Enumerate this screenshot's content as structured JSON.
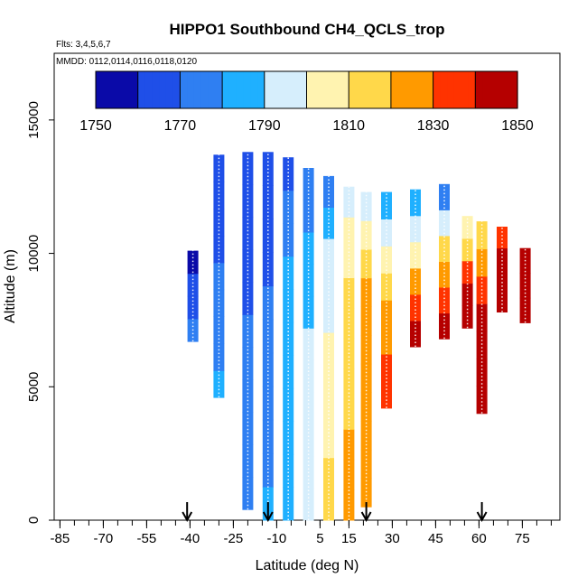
{
  "chart_data": {
    "type": "heatmap",
    "title": "HIPPO1 Southbound CH4_QCLS_trop",
    "flights_label": "Flts: 3,4,5,6,7",
    "mmdd_label": "MMDD: 0112,0114,0116,0118,0120",
    "xlabel": "Latitude (deg N)",
    "ylabel": "Altitude (m)",
    "xlim": [
      -87,
      88
    ],
    "ylim": [
      0,
      17500
    ],
    "x_ticks": [
      -85,
      -70,
      -55,
      -40,
      -25,
      -10,
      5,
      15,
      30,
      45,
      60,
      75
    ],
    "x_minor_step": 5,
    "y_ticks": [
      0,
      5000,
      10000,
      15000
    ],
    "colorbar": {
      "vmin": 1750,
      "vmax": 1850,
      "boundaries": [
        1750,
        1760,
        1770,
        1780,
        1790,
        1800,
        1810,
        1820,
        1830,
        1840,
        1850
      ],
      "labels": [
        "1750",
        "1770",
        "1790",
        "1810",
        "1830",
        "1850"
      ],
      "colors": [
        "#6a0dad",
        "#0a0aa8",
        "#1f4fe8",
        "#2f7ff2",
        "#1fb0ff",
        "#d6eefc",
        "#fff3b0",
        "#ffd84a",
        "#ff9a00",
        "#ff3300",
        "#b50000"
      ]
    },
    "arrows_latitude": [
      -41,
      -13,
      21,
      61
    ],
    "profiles": [
      {
        "lat": -39,
        "alt_min": 6700,
        "alt_max": 10100,
        "values": [
          1772,
          1766,
          1760,
          1758
        ]
      },
      {
        "lat": -30,
        "alt_min": 4600,
        "alt_max": 13700,
        "values": [
          1783,
          1778,
          1776,
          1772,
          1770,
          1768,
          1765,
          1763,
          1760
        ]
      },
      {
        "lat": -20,
        "alt_min": 400,
        "alt_max": 13800,
        "values": [
          1778,
          1777,
          1775,
          1774,
          1772,
          1770,
          1768,
          1766,
          1764,
          1762,
          1760
        ]
      },
      {
        "lat": -13,
        "alt_min": 0,
        "alt_max": 13800,
        "values": [
          1780,
          1779,
          1778,
          1776,
          1775,
          1773,
          1771,
          1769,
          1767,
          1765,
          1762
        ]
      },
      {
        "lat": -6,
        "alt_min": 0,
        "alt_max": 13600,
        "values": [
          1788,
          1787,
          1786,
          1786,
          1785,
          1785,
          1784,
          1782,
          1778,
          1772,
          1765
        ]
      },
      {
        "lat": 1,
        "alt_min": 0,
        "alt_max": 13200,
        "values": [
          1796,
          1795,
          1794,
          1793,
          1792,
          1790,
          1788,
          1786,
          1783,
          1778,
          1770
        ]
      },
      {
        "lat": 8,
        "alt_min": 0,
        "alt_max": 12900,
        "values": [
          1812,
          1810,
          1808,
          1806,
          1804,
          1802,
          1798,
          1796,
          1792,
          1786,
          1778
        ]
      },
      {
        "lat": 15,
        "alt_min": 0,
        "alt_max": 12500,
        "values": [
          1822,
          1821,
          1820,
          1819,
          1818,
          1817,
          1814,
          1812,
          1808,
          1800,
          1790
        ]
      },
      {
        "lat": 21,
        "alt_min": 500,
        "alt_max": 12300,
        "values": [
          1828,
          1828,
          1827,
          1826,
          1826,
          1825,
          1822,
          1820,
          1816,
          1808,
          1796
        ]
      },
      {
        "lat": 28,
        "alt_min": 4200,
        "alt_max": 12300,
        "values": [
          1832,
          1830,
          1828,
          1822,
          1818,
          1808,
          1795,
          1780
        ]
      },
      {
        "lat": 38,
        "alt_min": 6500,
        "alt_max": 12400,
        "values": [
          1840,
          1832,
          1820,
          1808,
          1795,
          1780
        ]
      },
      {
        "lat": 48,
        "alt_min": 6800,
        "alt_max": 12600,
        "values": [
          1842,
          1835,
          1825,
          1810,
          1790,
          1772
        ]
      },
      {
        "lat": 56,
        "alt_min": 7200,
        "alt_max": 11400,
        "values": [
          1845,
          1840,
          1830,
          1815,
          1800
        ]
      },
      {
        "lat": 61,
        "alt_min": 4000,
        "alt_max": 11200,
        "values": [
          1848,
          1845,
          1840,
          1845,
          1838,
          1825,
          1818
        ]
      },
      {
        "lat": 68,
        "alt_min": 7800,
        "alt_max": 11000,
        "values": [
          1848,
          1846,
          1843,
          1838
        ]
      },
      {
        "lat": 76,
        "alt_min": 7400,
        "alt_max": 10200,
        "values": [
          1846,
          1844,
          1842
        ]
      }
    ]
  }
}
